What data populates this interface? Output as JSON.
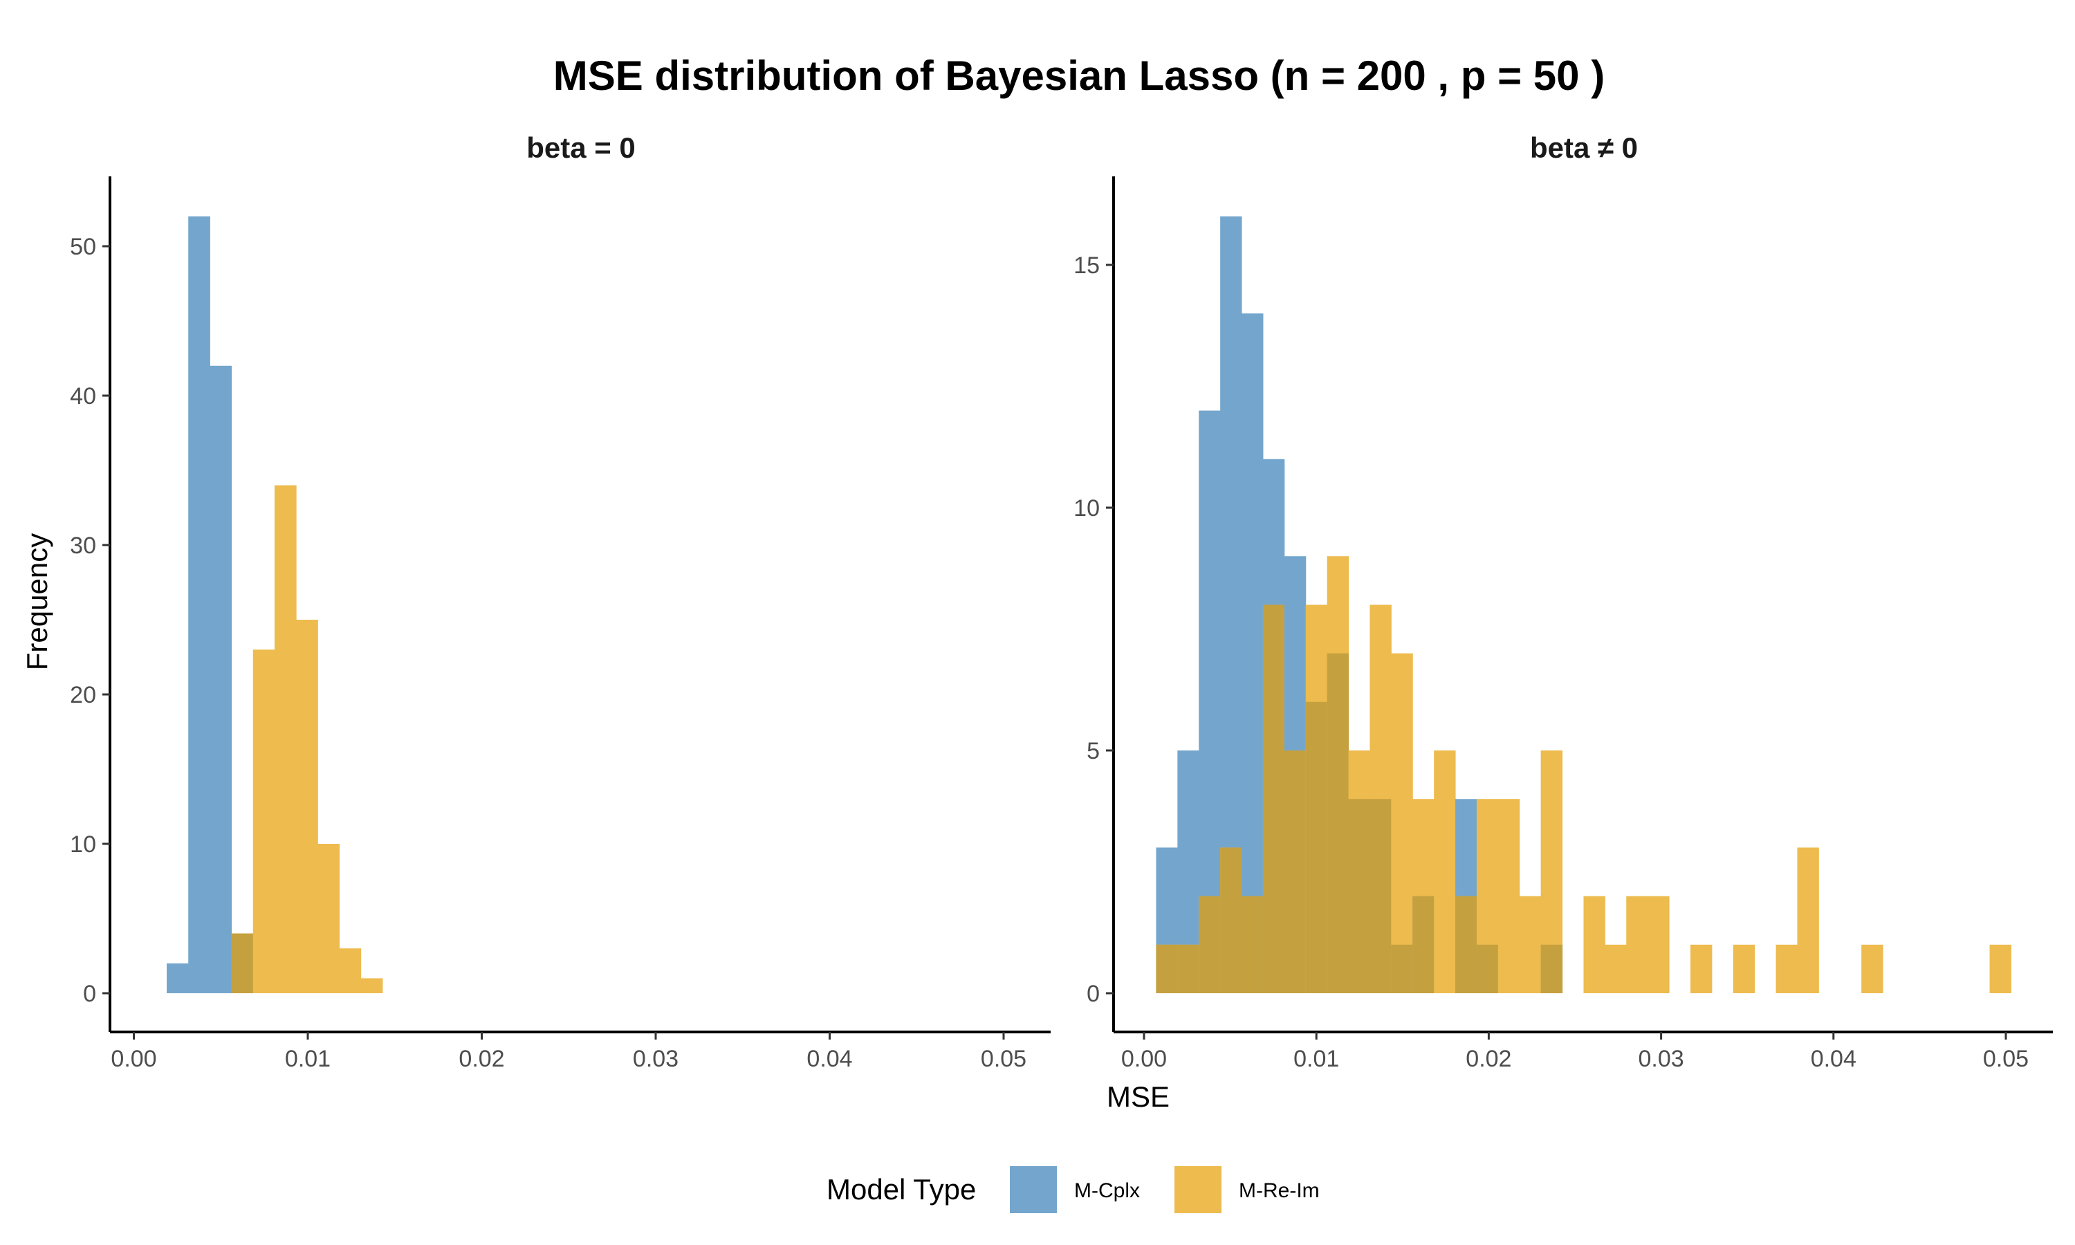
{
  "chart_data": {
    "type": "bar",
    "subtype": "histogram",
    "title": "MSE distribution of Bayesian Lasso (n = 200 , p = 50 )",
    "xlabel": "MSE",
    "ylabel": "Frequency",
    "colors": {
      "M-Cplx": "#74A6CD",
      "M-Re-Im": "#EDBB4E",
      "overlap": "#C5A03F"
    },
    "legend": {
      "title": "Model Type",
      "position": "bottom",
      "entries": [
        "M-Cplx",
        "M-Re-Im"
      ]
    },
    "xlim": [
      0,
      0.05
    ],
    "x_ticks": [
      "0.00",
      "0.01",
      "0.02",
      "0.03",
      "0.04",
      "0.05"
    ],
    "bin_width": 0.00124,
    "panels": [
      {
        "label": "beta = 0",
        "bin_start": 0.00189,
        "ylim": [
          0,
          53
        ],
        "y_ticks": [
          0,
          10,
          20,
          30,
          40,
          50
        ],
        "series": [
          {
            "name": "M-Cplx",
            "values": [
              2,
              52,
              42,
              4,
              0,
              0,
              0,
              0,
              0,
              0
            ]
          },
          {
            "name": "M-Re-Im",
            "values": [
              0,
              0,
              0,
              4,
              23,
              34,
              25,
              10,
              3,
              1
            ]
          }
        ]
      },
      {
        "label": "beta ≠ 0",
        "bin_start": 0.0007,
        "ylim": [
          0,
          16
        ],
        "y_ticks": [
          0,
          5,
          10,
          15
        ],
        "series": [
          {
            "name": "M-Cplx",
            "values": [
              3,
              5,
              12,
              16,
              14,
              11,
              9,
              6,
              7,
              4,
              4,
              1,
              2,
              0,
              4,
              1,
              0,
              0,
              1,
              0,
              0,
              0,
              0,
              0,
              0,
              0,
              0,
              0,
              0,
              0,
              0,
              0,
              0,
              0,
              0,
              0,
              0,
              0,
              0,
              0
            ]
          },
          {
            "name": "M-Re-Im",
            "values": [
              1,
              1,
              2,
              3,
              2,
              8,
              5,
              8,
              9,
              5,
              8,
              7,
              4,
              5,
              2,
              4,
              4,
              2,
              5,
              0,
              2,
              1,
              2,
              2,
              0,
              1,
              0,
              1,
              0,
              1,
              3,
              0,
              0,
              1,
              0,
              0,
              0,
              0,
              0,
              1
            ]
          }
        ]
      }
    ]
  }
}
